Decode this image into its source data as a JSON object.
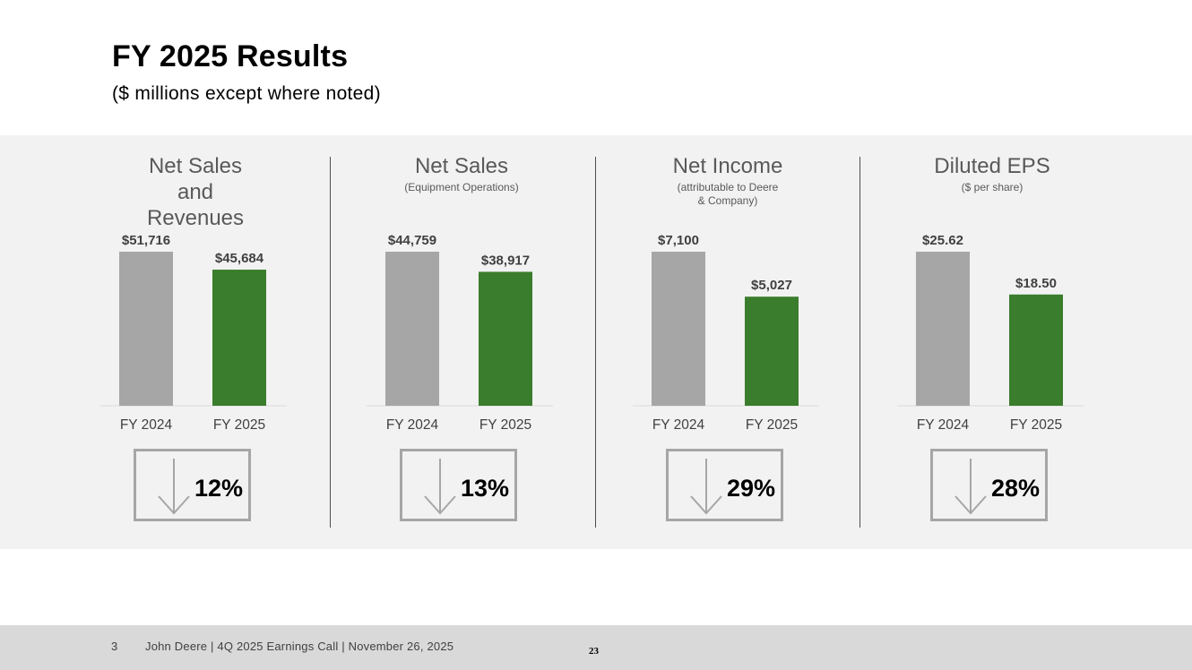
{
  "page": {
    "title": "FY 2025 Results",
    "subtitle": "($ millions except where noted)"
  },
  "colors": {
    "prior": "#a6a6a6",
    "current": "#3a7d2c",
    "band": "#f2f2f2"
  },
  "icons": {
    "change": "arrow-down-icon"
  },
  "chart_data": [
    {
      "type": "bar",
      "title": "Net Sales and Revenues",
      "note": "",
      "categories": [
        "FY 2024",
        "FY 2025"
      ],
      "values": [
        51716,
        45684
      ],
      "labels": [
        "$51,716",
        "$45,684"
      ],
      "change": "12%"
    },
    {
      "type": "bar",
      "title": "Net Sales",
      "note": "(Equipment Operations)",
      "categories": [
        "FY 2024",
        "FY 2025"
      ],
      "values": [
        44759,
        38917
      ],
      "labels": [
        "$44,759",
        "$38,917"
      ],
      "change": "13%"
    },
    {
      "type": "bar",
      "title": "Net Income",
      "note": "(attributable to Deere & Company)",
      "categories": [
        "FY 2024",
        "FY 2025"
      ],
      "values": [
        7100,
        5027
      ],
      "labels": [
        "$7,100",
        "$5,027"
      ],
      "change": "29%"
    },
    {
      "type": "bar",
      "title": "Diluted EPS",
      "note": "($ per share)",
      "categories": [
        "FY 2024",
        "FY 2025"
      ],
      "values": [
        25.62,
        18.5
      ],
      "labels": [
        "$25.62",
        "$18.50"
      ],
      "change": "28%"
    }
  ],
  "footer": {
    "slide_number": "3",
    "text": "John Deere | 4Q 2025 Earnings Call | November 26, 2025",
    "page": "23"
  }
}
